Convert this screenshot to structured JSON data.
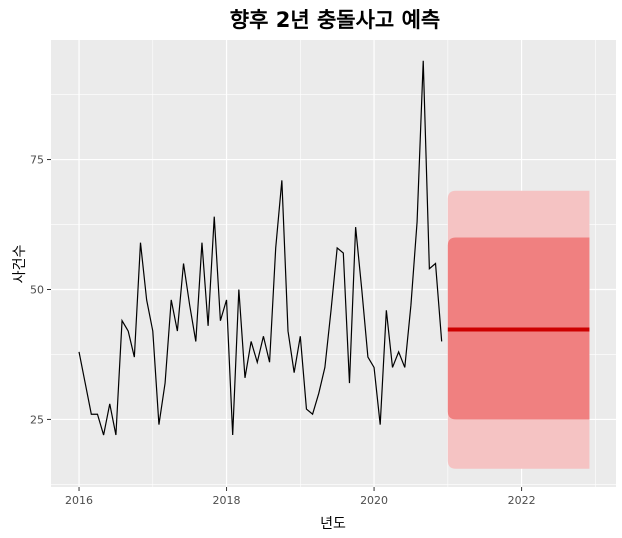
{
  "chart_data": {
    "type": "line",
    "title": "향후 2년 충돌사고 예측",
    "xlabel": "년도",
    "ylabel": "사건수",
    "xlim": [
      2015.62,
      2023.28
    ],
    "ylim": [
      12,
      98
    ],
    "x_ticks": [
      2016,
      2018,
      2020,
      2022
    ],
    "y_ticks": [
      25,
      50,
      75
    ],
    "grid": true,
    "legend": "none",
    "colors": {
      "panel": "#ebebeb",
      "grid": "#ffffff",
      "observed": "#000000",
      "forecast": "#cc0000",
      "band80": "#f08080",
      "band95": "#f5c3c3"
    },
    "series": [
      {
        "role": "observed",
        "x_start": 2016.0,
        "step": 0.08333,
        "values": [
          38,
          32,
          26,
          26,
          22,
          28,
          22,
          44,
          42,
          37,
          59,
          48,
          42,
          24,
          32,
          48,
          42,
          55,
          47,
          40,
          59,
          43,
          64,
          44,
          48,
          22,
          50,
          33,
          40,
          36,
          41,
          36,
          58,
          71,
          42,
          34,
          41,
          27,
          26,
          30,
          35,
          46,
          58,
          57,
          32,
          62,
          50,
          37,
          35,
          24,
          46,
          35,
          38,
          35,
          47,
          63,
          94,
          54,
          55,
          40
        ]
      },
      {
        "role": "forecast",
        "x_start": 2021.0,
        "x_end": 2022.92,
        "value": 42.3
      }
    ],
    "intervals": [
      {
        "level": "80",
        "lower": 25,
        "upper": 60
      },
      {
        "level": "95",
        "lower": 15.5,
        "upper": 69
      }
    ]
  }
}
